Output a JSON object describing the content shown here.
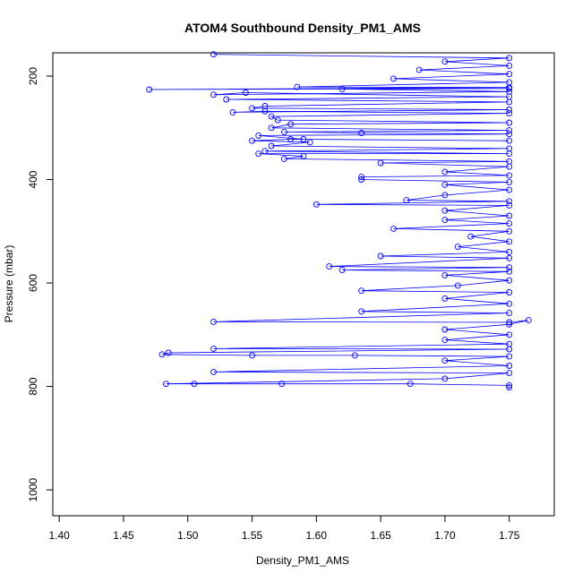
{
  "chart_data": {
    "type": "scatter",
    "title": "ATOM4 Southbound Density_PM1_AMS",
    "xlabel": "Density_PM1_AMS",
    "ylabel": "Pressure (mbar)",
    "xlim": [
      1.395,
      1.785
    ],
    "ylim": [
      1050,
      155
    ],
    "y_reversed": true,
    "grid": false,
    "legend": "none",
    "point_style": "open-circle-with-connecting-lines",
    "series_color": "#0000ff",
    "x_ticks": [
      {
        "value": 1.4,
        "label": "1.40"
      },
      {
        "value": 1.45,
        "label": "1.45"
      },
      {
        "value": 1.5,
        "label": "1.50"
      },
      {
        "value": 1.55,
        "label": "1.55"
      },
      {
        "value": 1.6,
        "label": "1.60"
      },
      {
        "value": 1.65,
        "label": "1.65"
      },
      {
        "value": 1.7,
        "label": "1.70"
      },
      {
        "value": 1.75,
        "label": "1.75"
      }
    ],
    "y_ticks": [
      {
        "value": 200,
        "label": "200"
      },
      {
        "value": 400,
        "label": "400"
      },
      {
        "value": 600,
        "label": "600"
      },
      {
        "value": 800,
        "label": "800"
      },
      {
        "value": 1000,
        "label": "1000"
      }
    ],
    "series": [
      {
        "points": [
          [
            1.52,
            158
          ],
          [
            1.75,
            165
          ],
          [
            1.7,
            172
          ],
          [
            1.75,
            180
          ],
          [
            1.68,
            188
          ],
          [
            1.75,
            196
          ],
          [
            1.66,
            205
          ],
          [
            1.75,
            212
          ],
          [
            1.585,
            221
          ],
          [
            1.75,
            222
          ],
          [
            1.47,
            226
          ],
          [
            1.75,
            224
          ],
          [
            1.62,
            225
          ],
          [
            1.75,
            230
          ],
          [
            1.52,
            236
          ],
          [
            1.545,
            232
          ],
          [
            1.75,
            240
          ],
          [
            1.53,
            245
          ],
          [
            1.75,
            250
          ],
          [
            1.56,
            258
          ],
          [
            1.55,
            262
          ],
          [
            1.75,
            265
          ],
          [
            1.535,
            270
          ],
          [
            1.56,
            268
          ],
          [
            1.75,
            272
          ],
          [
            1.565,
            278
          ],
          [
            1.57,
            285
          ],
          [
            1.75,
            290
          ],
          [
            1.58,
            293
          ],
          [
            1.565,
            300
          ],
          [
            1.75,
            305
          ],
          [
            1.575,
            308
          ],
          [
            1.635,
            310
          ],
          [
            1.75,
            312
          ],
          [
            1.555,
            315
          ],
          [
            1.59,
            322
          ],
          [
            1.75,
            325
          ],
          [
            1.58,
            322
          ],
          [
            1.55,
            325
          ],
          [
            1.595,
            328
          ],
          [
            1.565,
            335
          ],
          [
            1.75,
            340
          ],
          [
            1.56,
            345
          ],
          [
            1.75,
            350
          ],
          [
            1.555,
            350
          ],
          [
            1.59,
            355
          ],
          [
            1.575,
            360
          ],
          [
            1.75,
            365
          ],
          [
            1.65,
            368
          ],
          [
            1.75,
            375
          ],
          [
            1.7,
            385
          ],
          [
            1.75,
            392
          ],
          [
            1.635,
            395
          ],
          [
            1.635,
            400
          ],
          [
            1.75,
            405
          ],
          [
            1.7,
            410
          ],
          [
            1.75,
            420
          ],
          [
            1.7,
            430
          ],
          [
            1.67,
            440
          ],
          [
            1.75,
            442
          ],
          [
            1.6,
            448
          ],
          [
            1.75,
            450
          ],
          [
            1.7,
            460
          ],
          [
            1.75,
            470
          ],
          [
            1.7,
            478
          ],
          [
            1.75,
            485
          ],
          [
            1.66,
            495
          ],
          [
            1.75,
            500
          ],
          [
            1.72,
            510
          ],
          [
            1.75,
            520
          ],
          [
            1.71,
            530
          ],
          [
            1.75,
            540
          ],
          [
            1.65,
            548
          ],
          [
            1.75,
            552
          ],
          [
            1.61,
            568
          ],
          [
            1.75,
            570
          ],
          [
            1.62,
            575
          ],
          [
            1.75,
            578
          ],
          [
            1.7,
            585
          ],
          [
            1.75,
            595
          ],
          [
            1.71,
            605
          ],
          [
            1.635,
            615
          ],
          [
            1.75,
            618
          ],
          [
            1.7,
            630
          ],
          [
            1.75,
            640
          ],
          [
            1.635,
            655
          ],
          [
            1.75,
            658
          ],
          [
            1.52,
            675
          ],
          [
            1.75,
            676
          ],
          [
            1.765,
            672
          ],
          [
            1.75,
            680
          ],
          [
            1.7,
            690
          ],
          [
            1.75,
            700
          ],
          [
            1.7,
            710
          ],
          [
            1.75,
            718
          ],
          [
            1.52,
            727
          ],
          [
            1.75,
            728
          ],
          [
            1.485,
            735
          ],
          [
            1.48,
            738
          ],
          [
            1.55,
            740
          ],
          [
            1.63,
            740
          ],
          [
            1.75,
            742
          ],
          [
            1.7,
            750
          ],
          [
            1.75,
            760
          ],
          [
            1.52,
            772
          ],
          [
            1.75,
            774
          ],
          [
            1.7,
            785
          ],
          [
            1.483,
            795
          ],
          [
            1.505,
            795
          ],
          [
            1.573,
            795
          ],
          [
            1.673,
            795
          ],
          [
            1.75,
            798
          ],
          [
            1.75,
            802
          ]
        ]
      }
    ]
  }
}
